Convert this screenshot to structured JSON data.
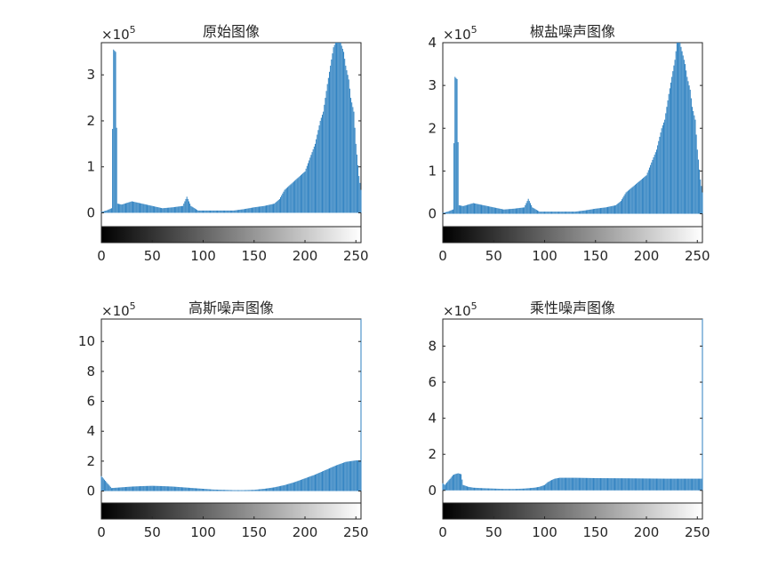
{
  "bar_color": "#3384C2",
  "axis_color": "#262626",
  "chart_data": [
    {
      "type": "bar",
      "title": "原始图像",
      "exponent_label": "×10",
      "exponent_power": "5",
      "xlim": [
        0,
        255
      ],
      "ylim": [
        -0.3,
        3.7
      ],
      "xticks": [
        0,
        50,
        100,
        150,
        200,
        250
      ],
      "yticks": [
        0,
        1,
        2,
        3
      ],
      "colorbar": "gray",
      "series": [
        {
          "x": [
            0,
            5,
            10,
            12,
            14,
            16,
            20,
            30,
            40,
            50,
            60,
            70,
            80,
            84,
            88,
            95,
            100,
            110,
            120,
            130,
            140,
            150,
            160,
            170,
            175,
            180,
            185,
            190,
            195,
            200,
            205,
            210,
            215,
            218,
            220,
            222,
            225,
            228,
            230,
            233,
            235,
            238,
            240,
            243,
            245,
            248,
            250,
            253,
            255
          ],
          "values": [
            0.02,
            0.05,
            0.1,
            3.55,
            3.5,
            0.2,
            0.18,
            0.25,
            0.2,
            0.15,
            0.1,
            0.12,
            0.15,
            0.35,
            0.15,
            0.05,
            0.05,
            0.05,
            0.05,
            0.05,
            0.08,
            0.12,
            0.15,
            0.2,
            0.3,
            0.5,
            0.6,
            0.7,
            0.8,
            0.9,
            1.2,
            1.5,
            2.0,
            2.2,
            2.5,
            2.8,
            3.2,
            3.6,
            3.7,
            3.7,
            3.7,
            3.5,
            3.2,
            2.9,
            2.5,
            2.2,
            1.5,
            0.8,
            0.5
          ]
        }
      ]
    },
    {
      "type": "bar",
      "title": "椒盐噪声图像",
      "exponent_label": "×10",
      "exponent_power": "5",
      "xlim": [
        0,
        255
      ],
      "ylim": [
        -0.3,
        4.0
      ],
      "xticks": [
        0,
        50,
        100,
        150,
        200,
        250
      ],
      "yticks": [
        0,
        1,
        2,
        3,
        4
      ],
      "colorbar": "gray",
      "series": [
        {
          "x": [
            0,
            5,
            10,
            12,
            14,
            16,
            20,
            30,
            40,
            50,
            60,
            70,
            80,
            84,
            88,
            95,
            100,
            110,
            120,
            130,
            140,
            150,
            160,
            170,
            175,
            180,
            185,
            190,
            195,
            200,
            205,
            210,
            215,
            218,
            220,
            222,
            225,
            228,
            230,
            233,
            235,
            238,
            240,
            243,
            245,
            248,
            250,
            253,
            255
          ],
          "values": [
            0.02,
            0.05,
            0.1,
            3.2,
            3.15,
            0.2,
            0.18,
            0.25,
            0.2,
            0.15,
            0.1,
            0.12,
            0.15,
            0.35,
            0.15,
            0.05,
            0.05,
            0.05,
            0.05,
            0.05,
            0.08,
            0.12,
            0.15,
            0.2,
            0.3,
            0.5,
            0.6,
            0.7,
            0.8,
            0.9,
            1.2,
            1.5,
            2.0,
            2.2,
            2.5,
            2.8,
            3.2,
            3.6,
            4.0,
            4.0,
            3.8,
            3.5,
            3.2,
            2.9,
            2.5,
            2.2,
            1.5,
            0.8,
            0.5
          ]
        }
      ]
    },
    {
      "type": "bar",
      "title": "高斯噪声图像",
      "exponent_label": "×10",
      "exponent_power": "5",
      "xlim": [
        0,
        255
      ],
      "ylim": [
        -0.8,
        11.5
      ],
      "xticks": [
        0,
        50,
        100,
        150,
        200,
        250
      ],
      "yticks": [
        0,
        2,
        4,
        6,
        8,
        10
      ],
      "colorbar": "gray",
      "series": [
        {
          "x": [
            0,
            10,
            20,
            30,
            40,
            50,
            60,
            70,
            80,
            90,
            100,
            110,
            120,
            130,
            140,
            150,
            160,
            170,
            180,
            190,
            200,
            210,
            220,
            230,
            240,
            250,
            254,
            255
          ],
          "values": [
            1.0,
            0.2,
            0.25,
            0.3,
            0.33,
            0.35,
            0.33,
            0.3,
            0.25,
            0.2,
            0.15,
            0.1,
            0.08,
            0.06,
            0.06,
            0.08,
            0.15,
            0.25,
            0.4,
            0.6,
            0.85,
            1.1,
            1.4,
            1.7,
            1.95,
            2.05,
            2.05,
            11.5
          ]
        }
      ]
    },
    {
      "type": "bar",
      "title": "乘性噪声图像",
      "exponent_label": "×10",
      "exponent_power": "5",
      "xlim": [
        0,
        255
      ],
      "ylim": [
        -0.7,
        9.5
      ],
      "xticks": [
        0,
        50,
        100,
        150,
        200,
        250
      ],
      "yticks": [
        0,
        2,
        4,
        6,
        8
      ],
      "colorbar": "gray",
      "series": [
        {
          "x": [
            0,
            2,
            5,
            8,
            10,
            12,
            15,
            18,
            20,
            25,
            30,
            40,
            50,
            60,
            70,
            80,
            90,
            95,
            100,
            103,
            106,
            110,
            115,
            120,
            130,
            150,
            180,
            200,
            220,
            240,
            254,
            255
          ],
          "values": [
            0.4,
            0.3,
            0.5,
            0.7,
            0.85,
            0.9,
            0.95,
            0.9,
            0.3,
            0.2,
            0.15,
            0.12,
            0.1,
            0.08,
            0.08,
            0.1,
            0.15,
            0.2,
            0.3,
            0.45,
            0.55,
            0.65,
            0.7,
            0.7,
            0.7,
            0.68,
            0.67,
            0.66,
            0.65,
            0.65,
            0.65,
            9.5
          ]
        }
      ]
    }
  ]
}
